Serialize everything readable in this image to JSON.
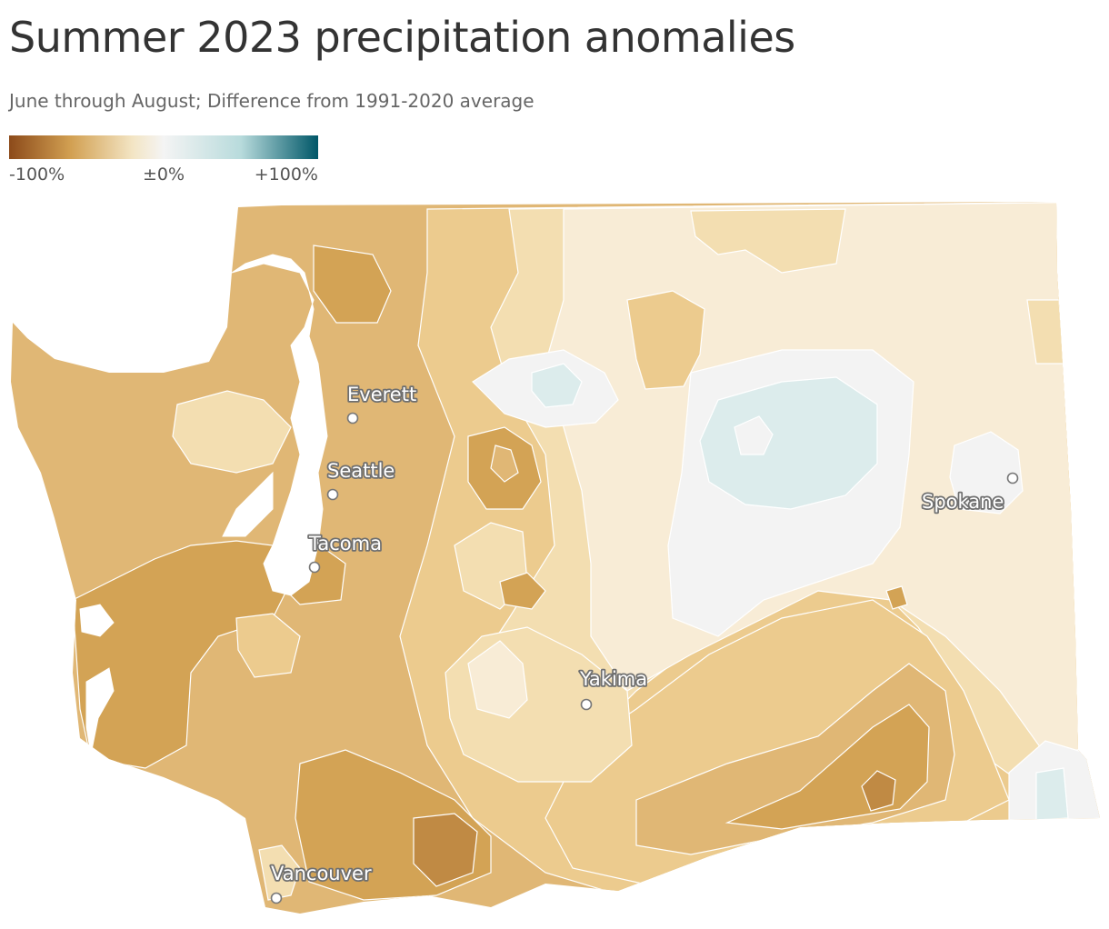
{
  "title": "Summer 2023 precipitation anomalies",
  "subtitle": "June through August; Difference from 1991-2020 average",
  "legend": {
    "min_label": "-100%",
    "mid_label": "±0%",
    "max_label": "+100%",
    "colors": [
      "#8c4a1a",
      "#d2a052",
      "#f3e5c4",
      "#f4f4f4",
      "#b8dbdc",
      "#005768"
    ]
  },
  "palette": {
    "very_dry": "#c08a44",
    "dry_strong": "#d3a355",
    "dry": "#e0b775",
    "dry_moderate": "#eccb8e",
    "dry_light": "#f3deb1",
    "near_normal_dry": "#f8ecd6",
    "normal": "#f3f3f3",
    "wet_light": "#dcecec",
    "contour": "#ffffff"
  },
  "cities": [
    {
      "name": "Everett"
    },
    {
      "name": "Seattle"
    },
    {
      "name": "Tacoma"
    },
    {
      "name": "Spokane"
    },
    {
      "name": "Yakima"
    },
    {
      "name": "Vancouver"
    }
  ]
}
